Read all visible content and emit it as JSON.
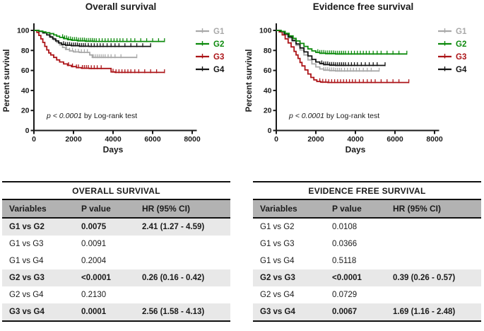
{
  "colors": {
    "g1": "#a9a9a9",
    "g2": "#0d8a0d",
    "g3": "#ac1418",
    "g4": "#141414",
    "axis": "#1a1a1a",
    "table_header_bg": "#b2b2b2",
    "row_highlight_bg": "#e8e8e8"
  },
  "chart_data": [
    {
      "type": "line",
      "subtype": "kaplan-meier-step",
      "title": "Overall survival",
      "xlabel": "Days",
      "ylabel": "Percent survival",
      "annotation": {
        "italic": "p < 0.0001",
        "rest": " by Log-rank test"
      },
      "xlim": [
        0,
        8000
      ],
      "ylim": [
        0,
        100
      ],
      "xticks": [
        0,
        2000,
        4000,
        6000,
        8000
      ],
      "yticks": [
        0,
        20,
        40,
        60,
        80,
        100
      ],
      "grid": false,
      "legend_position": "right",
      "series": [
        {
          "name": "G1",
          "color": "#a9a9a9",
          "points": [
            [
              0,
              100
            ],
            [
              250,
              99
            ],
            [
              450,
              97.5
            ],
            [
              650,
              95.5
            ],
            [
              850,
              93
            ],
            [
              1000,
              90.5
            ],
            [
              1150,
              88
            ],
            [
              1300,
              85.5
            ],
            [
              1450,
              83
            ],
            [
              1600,
              81
            ],
            [
              1800,
              79.5
            ],
            [
              2000,
              78.5
            ],
            [
              2300,
              78
            ],
            [
              2750,
              78
            ],
            [
              2820,
              75.5
            ],
            [
              2950,
              73
            ],
            [
              5200,
              73
            ]
          ],
          "censors": [
            1650,
            1800,
            1950,
            2100,
            2250,
            2400,
            2550,
            2700,
            3000,
            3100,
            3200,
            3300,
            3400,
            3500,
            3600,
            3750,
            3900,
            4100,
            4400,
            5200
          ]
        },
        {
          "name": "G2",
          "color": "#0d8a0d",
          "points": [
            [
              0,
              100
            ],
            [
              250,
              99.3
            ],
            [
              450,
              98.5
            ],
            [
              600,
              97.7
            ],
            [
              800,
              96.8
            ],
            [
              1000,
              95.5
            ],
            [
              1150,
              94.3
            ],
            [
              1300,
              93
            ],
            [
              1500,
              91.8
            ],
            [
              1700,
              90.8
            ],
            [
              1900,
              90.2
            ],
            [
              2200,
              89.6
            ],
            [
              2600,
              89.2
            ],
            [
              3000,
              89
            ],
            [
              6600,
              89
            ]
          ],
          "censors": [
            1450,
            1550,
            1650,
            1750,
            1850,
            1950,
            2050,
            2150,
            2250,
            2350,
            2450,
            2550,
            2650,
            2750,
            2850,
            2950,
            3050,
            3150,
            3300,
            3450,
            3600,
            3750,
            3900,
            4050,
            4200,
            4350,
            4500,
            4700,
            4900,
            5100,
            5400,
            5700,
            6000,
            6300,
            6600
          ]
        },
        {
          "name": "G3",
          "color": "#ac1418",
          "points": [
            [
              0,
              100
            ],
            [
              150,
              98
            ],
            [
              250,
              95
            ],
            [
              350,
              91.5
            ],
            [
              450,
              88
            ],
            [
              550,
              84
            ],
            [
              650,
              80.5
            ],
            [
              750,
              77.5
            ],
            [
              850,
              75.5
            ],
            [
              1000,
              73
            ],
            [
              1150,
              70.5
            ],
            [
              1300,
              68.5
            ],
            [
              1500,
              66.5
            ],
            [
              1700,
              65
            ],
            [
              1900,
              63.8
            ],
            [
              2150,
              62.8
            ],
            [
              2400,
              62.2
            ],
            [
              2800,
              62
            ],
            [
              3800,
              62
            ],
            [
              3900,
              58.5
            ],
            [
              4100,
              58
            ],
            [
              6600,
              58
            ]
          ],
          "censors": [
            1750,
            1950,
            2150,
            2250,
            2450,
            2550,
            2650,
            2750,
            2900,
            3050,
            3200,
            3400,
            4000,
            4150,
            4300,
            4450,
            4600,
            4750,
            4900,
            5100,
            5300,
            5600,
            5900,
            6200,
            6600
          ]
        },
        {
          "name": "G4",
          "color": "#141414",
          "points": [
            [
              0,
              100
            ],
            [
              250,
              99
            ],
            [
              450,
              97.5
            ],
            [
              650,
              95.5
            ],
            [
              800,
              93.5
            ],
            [
              950,
              91.5
            ],
            [
              1100,
              89.5
            ],
            [
              1250,
              87.5
            ],
            [
              1400,
              86
            ],
            [
              1600,
              85.2
            ],
            [
              1900,
              84.7
            ],
            [
              2300,
              84.2
            ],
            [
              2800,
              84
            ],
            [
              5900,
              84
            ]
          ],
          "censors": [
            1500,
            1600,
            1700,
            1800,
            1900,
            2000,
            2100,
            2200,
            2300,
            2400,
            2500,
            2600,
            2750,
            2900,
            3050,
            3200,
            3350,
            3500,
            3700,
            3900,
            4100,
            4300,
            4600,
            4900,
            5200,
            5500,
            5900
          ]
        }
      ]
    },
    {
      "type": "line",
      "subtype": "kaplan-meier-step",
      "title": "Evidence free survival",
      "xlabel": "Days",
      "ylabel": "Percent survival",
      "annotation": {
        "italic": "p < 0.0001",
        "rest": " by Log-rank test"
      },
      "xlim": [
        0,
        8000
      ],
      "ylim": [
        0,
        100
      ],
      "xticks": [
        0,
        2000,
        4000,
        6000,
        8000
      ],
      "yticks": [
        0,
        20,
        40,
        60,
        80,
        100
      ],
      "grid": false,
      "legend_position": "right",
      "series": [
        {
          "name": "G1",
          "color": "#a9a9a9",
          "points": [
            [
              0,
              100
            ],
            [
              200,
              98.5
            ],
            [
              400,
              95.5
            ],
            [
              600,
              92.5
            ],
            [
              800,
              89
            ],
            [
              1000,
              85
            ],
            [
              1200,
              80.5
            ],
            [
              1400,
              75.5
            ],
            [
              1600,
              70.5
            ],
            [
              1800,
              66.5
            ],
            [
              2000,
              63.5
            ],
            [
              2200,
              61.5
            ],
            [
              2400,
              60.3
            ],
            [
              2700,
              59.8
            ],
            [
              3000,
              59.5
            ],
            [
              5200,
              59.5
            ]
          ],
          "censors": [
            2400,
            2500,
            2600,
            2700,
            2800,
            2900,
            3000,
            3100,
            3200,
            3300,
            3450,
            3600,
            3750,
            3900,
            4050,
            4200,
            4400,
            4600,
            4800,
            5200
          ]
        },
        {
          "name": "G2",
          "color": "#0d8a0d",
          "points": [
            [
              0,
              100
            ],
            [
              250,
              99
            ],
            [
              450,
              97
            ],
            [
              650,
              94.5
            ],
            [
              850,
              92
            ],
            [
              1000,
              89.5
            ],
            [
              1200,
              87
            ],
            [
              1400,
              84
            ],
            [
              1600,
              81.5
            ],
            [
              1800,
              79.5
            ],
            [
              2000,
              78
            ],
            [
              2200,
              77.2
            ],
            [
              2500,
              76.8
            ],
            [
              3000,
              76.5
            ],
            [
              6600,
              76.5
            ]
          ],
          "censors": [
            2100,
            2200,
            2300,
            2400,
            2500,
            2600,
            2700,
            2800,
            2900,
            3000,
            3100,
            3200,
            3300,
            3400,
            3500,
            3650,
            3800,
            3950,
            4100,
            4250,
            4400,
            4550,
            4700,
            4900,
            5100,
            5300,
            5600,
            5900,
            6200,
            6600
          ]
        },
        {
          "name": "G3",
          "color": "#ac1418",
          "points": [
            [
              0,
              100
            ],
            [
              150,
              98.5
            ],
            [
              300,
              95.5
            ],
            [
              450,
              91.5
            ],
            [
              600,
              87.5
            ],
            [
              750,
              83.5
            ],
            [
              900,
              79
            ],
            [
              1000,
              75.5
            ],
            [
              1100,
              72
            ],
            [
              1200,
              68
            ],
            [
              1300,
              64.5
            ],
            [
              1450,
              60.5
            ],
            [
              1600,
              56.5
            ],
            [
              1750,
              53
            ],
            [
              1900,
              50.5
            ],
            [
              2050,
              49
            ],
            [
              2250,
              48.3
            ],
            [
              2600,
              48
            ],
            [
              6700,
              48
            ]
          ],
          "censors": [
            2200,
            2350,
            2500,
            2650,
            2800,
            2950,
            3100,
            3250,
            3400,
            3550,
            3700,
            3850,
            4000,
            4200,
            4400,
            4600,
            4800,
            5000,
            5300,
            5600,
            5900,
            6200,
            6700
          ]
        },
        {
          "name": "G4",
          "color": "#141414",
          "points": [
            [
              0,
              100
            ],
            [
              200,
              99
            ],
            [
              400,
              96.5
            ],
            [
              600,
              93.5
            ],
            [
              800,
              90
            ],
            [
              1000,
              86.5
            ],
            [
              1200,
              82.5
            ],
            [
              1400,
              78.5
            ],
            [
              1600,
              74.5
            ],
            [
              1800,
              71
            ],
            [
              2000,
              68.5
            ],
            [
              2200,
              66.8
            ],
            [
              2400,
              65.8
            ],
            [
              2700,
              65.2
            ],
            [
              3000,
              65
            ],
            [
              5500,
              65
            ]
          ],
          "censors": [
            2300,
            2400,
            2500,
            2600,
            2700,
            2800,
            2900,
            3000,
            3100,
            3200,
            3300,
            3400,
            3500,
            3650,
            3800,
            3950,
            4100,
            4300,
            4500,
            4700,
            4900,
            5100,
            5500
          ]
        }
      ]
    },
    {
      "type": "table",
      "title": "OVERALL SURVIVAL",
      "columns": [
        "Variables",
        "P value",
        "HR (95% CI)"
      ],
      "rows": [
        {
          "cells": [
            "G1 vs G2",
            "0.0075",
            "2.41 (1.27 - 4.59)"
          ],
          "highlight": true
        },
        {
          "cells": [
            "G1 vs G3",
            "0.0091",
            ""
          ],
          "highlight": false
        },
        {
          "cells": [
            "G1 vs G4",
            "0.2004",
            ""
          ],
          "highlight": false
        },
        {
          "cells": [
            "G2 vs G3",
            "<0.0001",
            "0.26 (0.16 - 0.42)"
          ],
          "highlight": true
        },
        {
          "cells": [
            "G2 vs G4",
            "0.2130",
            ""
          ],
          "highlight": false
        },
        {
          "cells": [
            "G3 vs G4",
            "0.0001",
            "2.56 (1.58 - 4.13)"
          ],
          "highlight": true
        }
      ]
    },
    {
      "type": "table",
      "title": "EVIDENCE FREE SURVIVAL",
      "columns": [
        "Variables",
        "P value",
        "HR (95% CI)"
      ],
      "rows": [
        {
          "cells": [
            "G1 vs G2",
            "0.0108",
            ""
          ],
          "highlight": false
        },
        {
          "cells": [
            "G1 vs G3",
            "0.0366",
            ""
          ],
          "highlight": false
        },
        {
          "cells": [
            "G1 vs G4",
            "0.5118",
            ""
          ],
          "highlight": false
        },
        {
          "cells": [
            "G2 vs G3",
            "<0.0001",
            "0.39 (0.26 - 0.57)"
          ],
          "highlight": true
        },
        {
          "cells": [
            "G2 vs G4",
            "0.0729",
            ""
          ],
          "highlight": false
        },
        {
          "cells": [
            "G3 vs G4",
            "0.0067",
            "1.69 (1.16 - 2.48)"
          ],
          "highlight": true
        }
      ]
    }
  ]
}
